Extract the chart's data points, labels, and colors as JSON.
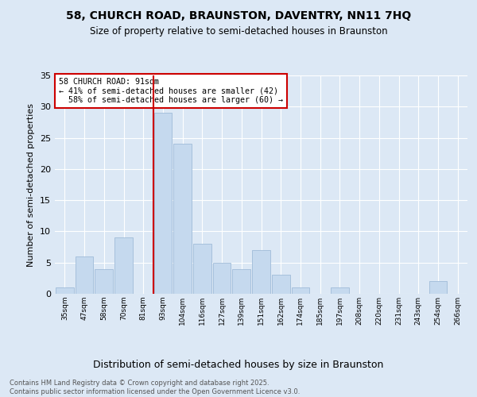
{
  "title1": "58, CHURCH ROAD, BRAUNSTON, DAVENTRY, NN11 7HQ",
  "title2": "Size of property relative to semi-detached houses in Braunston",
  "xlabel": "Distribution of semi-detached houses by size in Braunston",
  "ylabel": "Number of semi-detached properties",
  "bin_labels": [
    "35sqm",
    "47sqm",
    "58sqm",
    "70sqm",
    "81sqm",
    "93sqm",
    "104sqm",
    "116sqm",
    "127sqm",
    "139sqm",
    "151sqm",
    "162sqm",
    "174sqm",
    "185sqm",
    "197sqm",
    "208sqm",
    "220sqm",
    "231sqm",
    "243sqm",
    "254sqm",
    "266sqm"
  ],
  "bar_heights": [
    1,
    6,
    4,
    9,
    0,
    29,
    24,
    8,
    5,
    4,
    7,
    3,
    1,
    0,
    1,
    0,
    0,
    0,
    0,
    2,
    0
  ],
  "bar_color": "#c5d9ee",
  "bar_edge_color": "#a0bcd8",
  "property_size": 91,
  "pct_smaller": 41,
  "count_smaller": 42,
  "pct_larger": 58,
  "count_larger": 60,
  "vline_color": "#cc0000",
  "annotation_box_color": "#cc0000",
  "bg_color": "#dce8f5",
  "plot_bg_color": "#dce8f5",
  "footer": "Contains HM Land Registry data © Crown copyright and database right 2025.\nContains public sector information licensed under the Open Government Licence v3.0.",
  "ylim": [
    0,
    35
  ],
  "yticks": [
    0,
    5,
    10,
    15,
    20,
    25,
    30,
    35
  ]
}
